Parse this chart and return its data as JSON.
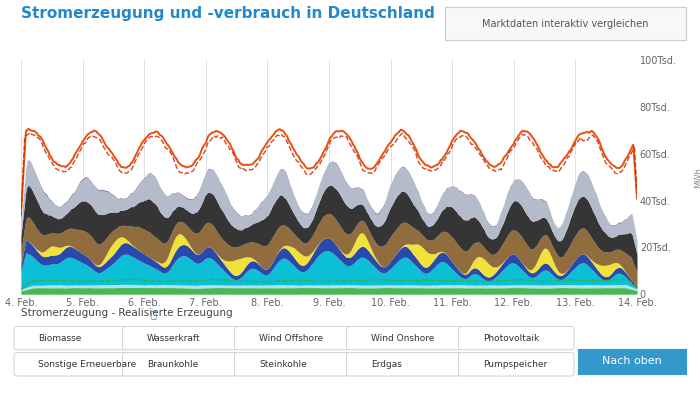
{
  "title": "Stromerzeugung und -verbrauch in Deutschland",
  "subtitle_box": "Marktdaten interaktiv vergleichen",
  "xlabel_dates": [
    "4. Feb.",
    "5. Feb.",
    "6. Feb.",
    "7. Feb.",
    "8. Feb.",
    "9. Feb.",
    "10. Feb.",
    "11. Feb.",
    "12. Feb.",
    "13. Feb.",
    "14. Feb."
  ],
  "ylabel_right_labels": [
    "0",
    "20Tsd.",
    "40Tsd.",
    "60Tsd.",
    "80Tsd.",
    "100Tsd."
  ],
  "ylabel_right_vals": [
    0,
    20000,
    40000,
    60000,
    80000,
    100000
  ],
  "ylabel_axis_label": "MWh",
  "legend_label": "Stromerzeugung - Realisierte Erzeugung",
  "legend_items": [
    {
      "label": "Biomasse",
      "color": "#3db44b"
    },
    {
      "label": "Wasserkraft",
      "color": "#aee0ee"
    },
    {
      "label": "Wind Offshore",
      "color": "#00bcd4"
    },
    {
      "label": "Wind Onshore",
      "color": "#1e3fa8"
    },
    {
      "label": "Photovoltaik",
      "color": "#f0e030"
    },
    {
      "label": "Sonstige Erneuerbare",
      "color": "#7bcf5a"
    },
    {
      "label": "Braunkohle",
      "color": "#8B6432"
    },
    {
      "label": "Steinkohle",
      "color": "#2a2a2a"
    },
    {
      "label": "Erdgas",
      "color": "#b0b8c8"
    },
    {
      "label": "Pumpspeicher",
      "color": "#1a2070"
    }
  ],
  "background_color": "#ffffff",
  "plot_bg_color": "#ffffff",
  "grid_color": "#e0e0e0",
  "ylim": [
    0,
    100000
  ],
  "colors": {
    "biomasse": "#3db44b",
    "wasserkraft": "#aee0ee",
    "wind_offshore": "#00bcd4",
    "wind_onshore": "#1e3fa8",
    "photovoltaik": "#f0e030",
    "sonstige": "#7bcf5a",
    "braunkohle": "#8B6432",
    "steinkohle": "#2a2a2a",
    "erdgas": "#b0b8c8",
    "pumpspeicher": "#1a2070",
    "consumption1": "#e85010",
    "consumption2": "#cc2800",
    "sonstige_line": "#22bb22"
  }
}
